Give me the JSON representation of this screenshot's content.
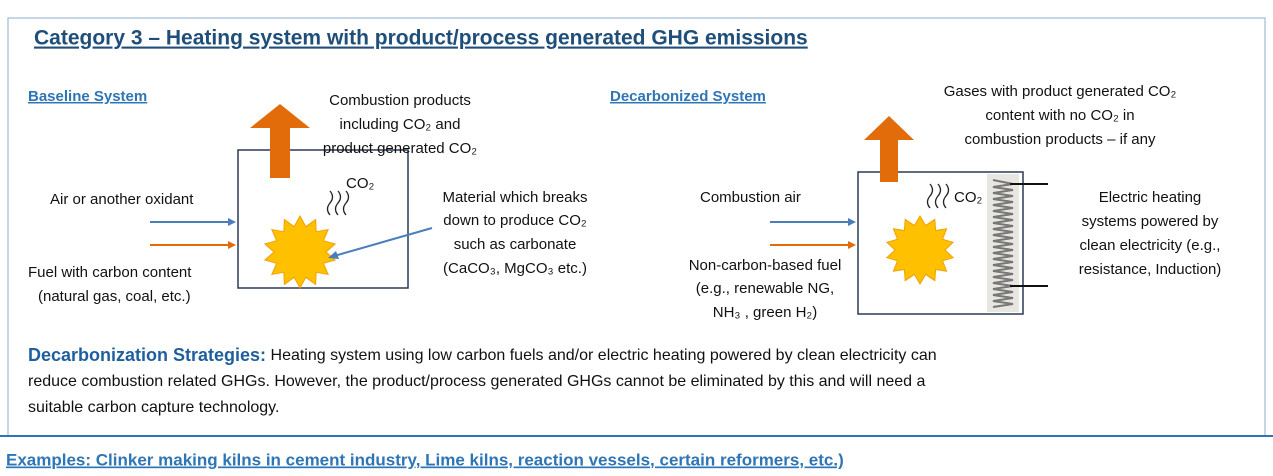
{
  "title": "Category 3 – Heating system with product/process generated GHG emissions",
  "baseline": {
    "heading": "Baseline System",
    "products": [
      "Combustion products",
      "including CO₂ and",
      "product generated CO₂"
    ],
    "co2": "CO₂",
    "oxidant": "Air or another oxidant",
    "fuel": [
      "Fuel with carbon content",
      "(natural gas, coal, etc.)"
    ],
    "material": [
      "Material which breaks",
      "down to produce CO₂",
      "such as  carbonate",
      "(CaCO₃, MgCO₃ etc.)"
    ]
  },
  "decarbonized": {
    "heading": "Decarbonized System",
    "gases": [
      "Gases with product generated CO₂",
      "content  with no CO₂ in",
      "combustion products – if any"
    ],
    "co2": "CO₂",
    "air": "Combustion air",
    "fuel": [
      "Non-carbon-based fuel",
      "(e.g., renewable NG,",
      "NH₃ , green H₂)"
    ],
    "electric": [
      "Electric heating",
      "systems powered by",
      "clean electricity (e.g.,",
      "resistance, Induction)"
    ]
  },
  "strategies": {
    "heading": "Decarbonization Strategies:",
    "lines": [
      " Heating system using low carbon fuels and/or electric heating powered by clean electricity can",
      "reduce combustion related GHGs.  However, the product/process generated GHGs cannot be eliminated by this and will need a",
      "suitable carbon capture technology."
    ]
  },
  "examples": "Examples: Clinker making kilns in cement industry, Lime kilns, reaction vessels, certain reformers, etc.)"
}
